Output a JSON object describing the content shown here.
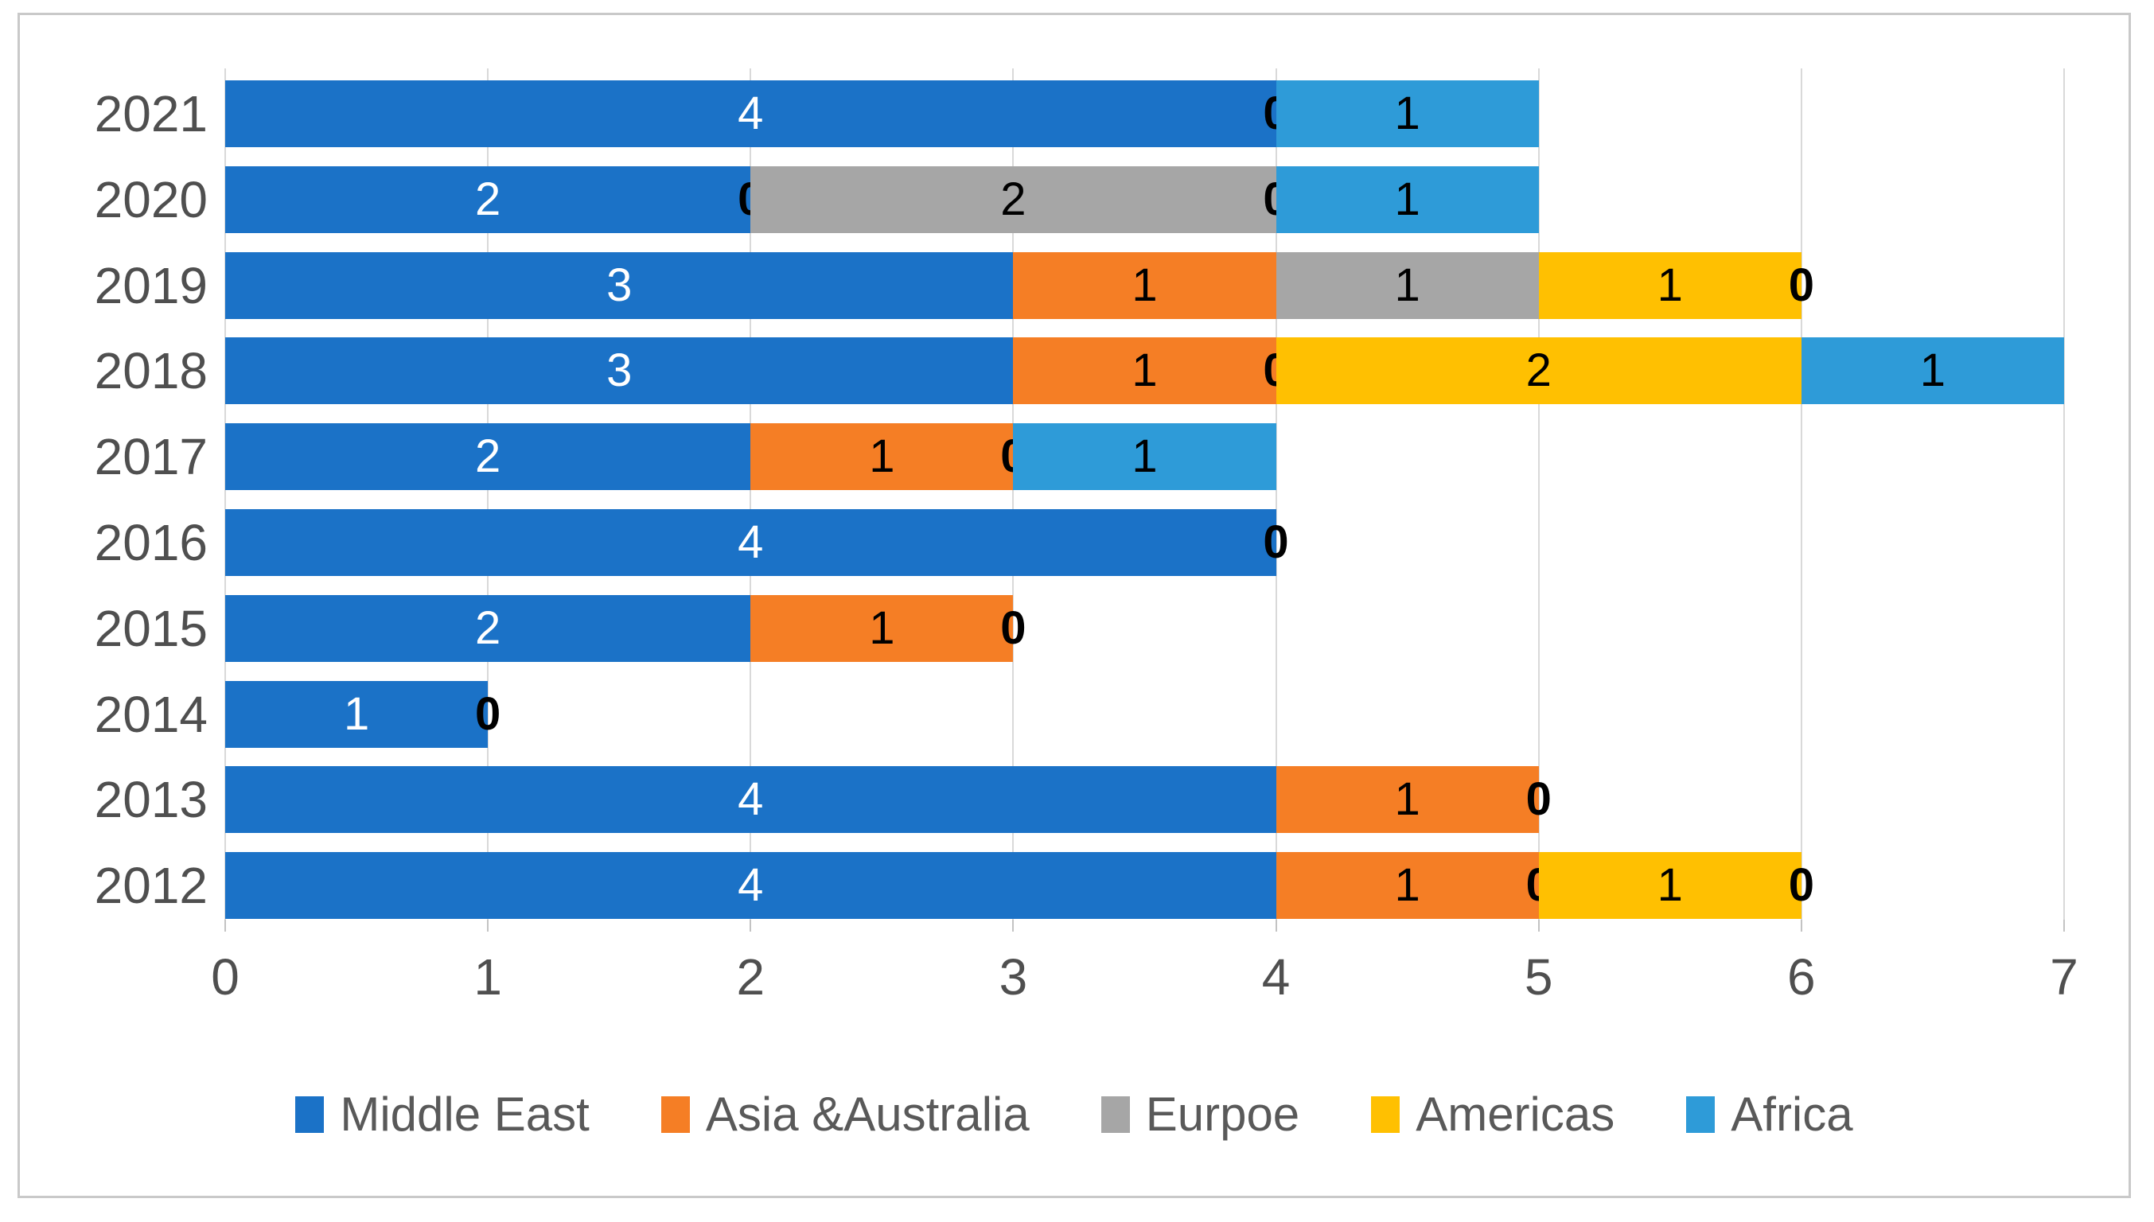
{
  "figure": {
    "border_color": "#c9c9c9",
    "background": "#ffffff",
    "gridline_color": "#d9d9d9",
    "axis_text_color": "#4f4f4f",
    "legend_text_color": "#595959"
  },
  "chart_data": {
    "type": "bar",
    "orientation": "horizontal-stacked",
    "title": "",
    "xlabel": "",
    "ylabel": "",
    "categories": [
      "2021",
      "2020",
      "2019",
      "2018",
      "2017",
      "2016",
      "2015",
      "2014",
      "2013",
      "2012"
    ],
    "series": [
      {
        "name": "Middle East",
        "color": "#1b72c7",
        "label_color": "#ffffff",
        "values": [
          4,
          2,
          3,
          3,
          2,
          4,
          2,
          1,
          4,
          4
        ]
      },
      {
        "name": "Asia &Australia",
        "color": "#f57e25",
        "label_color": "#000000",
        "values": [
          0,
          0,
          1,
          1,
          1,
          0,
          1,
          0,
          1,
          1
        ]
      },
      {
        "name": "Eurpoe",
        "color": "#a6a6a6",
        "label_color": "#000000",
        "values": [
          null,
          2,
          1,
          0,
          0,
          null,
          0,
          null,
          0,
          0
        ]
      },
      {
        "name": "Americas",
        "color": "#ffc001",
        "label_color": "#000000",
        "values": [
          null,
          0,
          1,
          2,
          null,
          null,
          null,
          null,
          null,
          1
        ]
      },
      {
        "name": "Africa",
        "color": "#2e9bd8",
        "label_color": "#000000",
        "values": [
          1,
          1,
          0,
          1,
          1,
          null,
          null,
          null,
          null,
          0
        ]
      }
    ],
    "xlim": [
      0,
      7
    ],
    "xticks": [
      "0",
      "1",
      "2",
      "3",
      "4",
      "5",
      "6",
      "7"
    ],
    "grid": "vertical-only",
    "legend_position": "bottom",
    "bar_labels_shown": true
  }
}
